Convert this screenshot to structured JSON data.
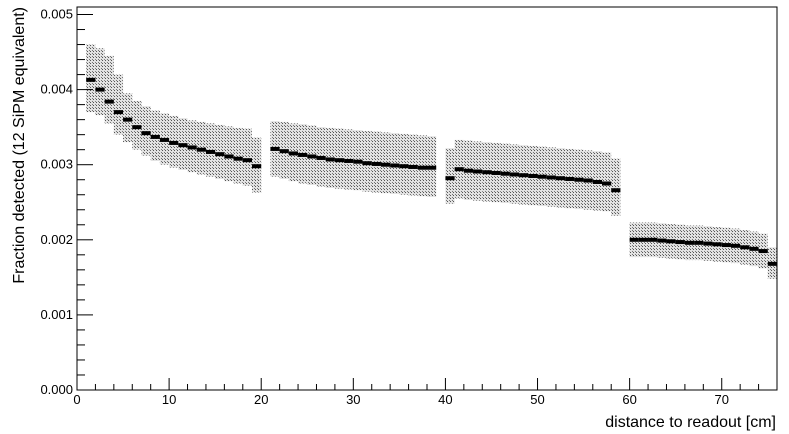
{
  "chart_data": {
    "type": "scatter",
    "xlabel": "distance to readout [cm]",
    "ylabel": "Fraction detected (12 SiPM equivalent)",
    "xlim": [
      0,
      76
    ],
    "ylim": [
      0,
      0.0051
    ],
    "x_ticks": [
      0,
      10,
      20,
      30,
      40,
      50,
      60,
      70
    ],
    "x_tick_labels": [
      "0",
      "10",
      "20",
      "30",
      "40",
      "50",
      "60",
      "70"
    ],
    "y_ticks": [
      0,
      0.001,
      0.002,
      0.003,
      0.004,
      0.005
    ],
    "y_tick_labels": [
      "0.000",
      "0.001",
      "0.002",
      "0.003",
      "0.004",
      "0.005"
    ],
    "grid": false,
    "bin_width": 1,
    "series": [
      {
        "x": [
          1.5,
          2.5,
          3.5,
          4.5,
          5.5,
          6.5,
          7.5,
          8.5,
          9.5,
          10.5,
          11.5,
          12.5,
          13.5,
          14.5,
          15.5,
          16.5,
          17.5,
          18.5,
          19.5,
          21.5,
          22.5,
          23.5,
          24.5,
          25.5,
          26.5,
          27.5,
          28.5,
          29.5,
          30.5,
          31.5,
          32.5,
          33.5,
          34.5,
          35.5,
          36.5,
          37.5,
          38.5,
          40.5,
          41.5,
          42.5,
          43.5,
          44.5,
          45.5,
          46.5,
          47.5,
          48.5,
          49.5,
          50.5,
          51.5,
          52.5,
          53.5,
          54.5,
          55.5,
          56.5,
          57.5,
          58.5,
          60.5,
          61.5,
          62.5,
          63.5,
          64.5,
          65.5,
          66.5,
          67.5,
          68.5,
          69.5,
          70.5,
          71.5,
          72.5,
          73.5,
          74.5,
          75.5
        ],
        "y": [
          0.00413,
          0.004,
          0.00384,
          0.0037,
          0.0036,
          0.0035,
          0.00342,
          0.00337,
          0.00333,
          0.00329,
          0.00326,
          0.00323,
          0.0032,
          0.00317,
          0.00314,
          0.00311,
          0.00308,
          0.00306,
          0.00298,
          0.00321,
          0.00318,
          0.00315,
          0.00313,
          0.00311,
          0.00309,
          0.00307,
          0.00306,
          0.00305,
          0.00304,
          0.00302,
          0.00301,
          0.003,
          0.00299,
          0.00298,
          0.00297,
          0.00296,
          0.00296,
          0.00282,
          0.00294,
          0.00292,
          0.00291,
          0.0029,
          0.00289,
          0.00288,
          0.00287,
          0.00286,
          0.00285,
          0.00284,
          0.00283,
          0.00282,
          0.00281,
          0.0028,
          0.00279,
          0.00277,
          0.00275,
          0.00266,
          0.002,
          0.002,
          0.002,
          0.00199,
          0.00198,
          0.00197,
          0.00196,
          0.00196,
          0.00195,
          0.00194,
          0.00193,
          0.00192,
          0.0019,
          0.00188,
          0.00185,
          0.00168
        ],
        "y_upper": [
          0.0046,
          0.00455,
          0.00445,
          0.0042,
          0.00395,
          0.00385,
          0.00378,
          0.00372,
          0.00368,
          0.00365,
          0.00362,
          0.00359,
          0.00357,
          0.00355,
          0.00353,
          0.00351,
          0.00349,
          0.00348,
          0.00336,
          0.00358,
          0.00357,
          0.00355,
          0.00354,
          0.00352,
          0.0035,
          0.00349,
          0.00348,
          0.00347,
          0.00346,
          0.00345,
          0.00344,
          0.00343,
          0.00342,
          0.00341,
          0.0034,
          0.00339,
          0.00338,
          0.00322,
          0.00333,
          0.00332,
          0.00331,
          0.0033,
          0.00329,
          0.00328,
          0.00327,
          0.00326,
          0.00325,
          0.00324,
          0.00323,
          0.00322,
          0.00321,
          0.0032,
          0.00319,
          0.00318,
          0.00316,
          0.00308,
          0.00223,
          0.00223,
          0.00223,
          0.00222,
          0.00221,
          0.0022,
          0.00219,
          0.00219,
          0.00218,
          0.00217,
          0.00216,
          0.00215,
          0.00213,
          0.00211,
          0.00208,
          0.0019
        ],
        "y_lower": [
          0.0037,
          0.00366,
          0.00355,
          0.0034,
          0.0033,
          0.0032,
          0.00312,
          0.00305,
          0.003,
          0.00296,
          0.00293,
          0.0029,
          0.00287,
          0.00284,
          0.00281,
          0.00278,
          0.00275,
          0.00272,
          0.00263,
          0.00284,
          0.00281,
          0.00278,
          0.00275,
          0.00273,
          0.00271,
          0.00269,
          0.00268,
          0.00267,
          0.00266,
          0.00264,
          0.00263,
          0.00262,
          0.00261,
          0.0026,
          0.00259,
          0.00258,
          0.00257,
          0.00248,
          0.00255,
          0.00253,
          0.00252,
          0.00251,
          0.0025,
          0.00249,
          0.00248,
          0.00247,
          0.00246,
          0.00245,
          0.00244,
          0.00243,
          0.00242,
          0.00241,
          0.0024,
          0.00239,
          0.00238,
          0.00232,
          0.00177,
          0.00177,
          0.00177,
          0.00176,
          0.00175,
          0.00174,
          0.00173,
          0.00173,
          0.00172,
          0.00171,
          0.0017,
          0.00169,
          0.00167,
          0.00165,
          0.00162,
          0.00148
        ]
      }
    ],
    "colors": {
      "marker": "#000000",
      "band_fill": "#e6e6e6",
      "band_hatch": "#555555",
      "axis": "#000000",
      "background": "#ffffff"
    }
  }
}
